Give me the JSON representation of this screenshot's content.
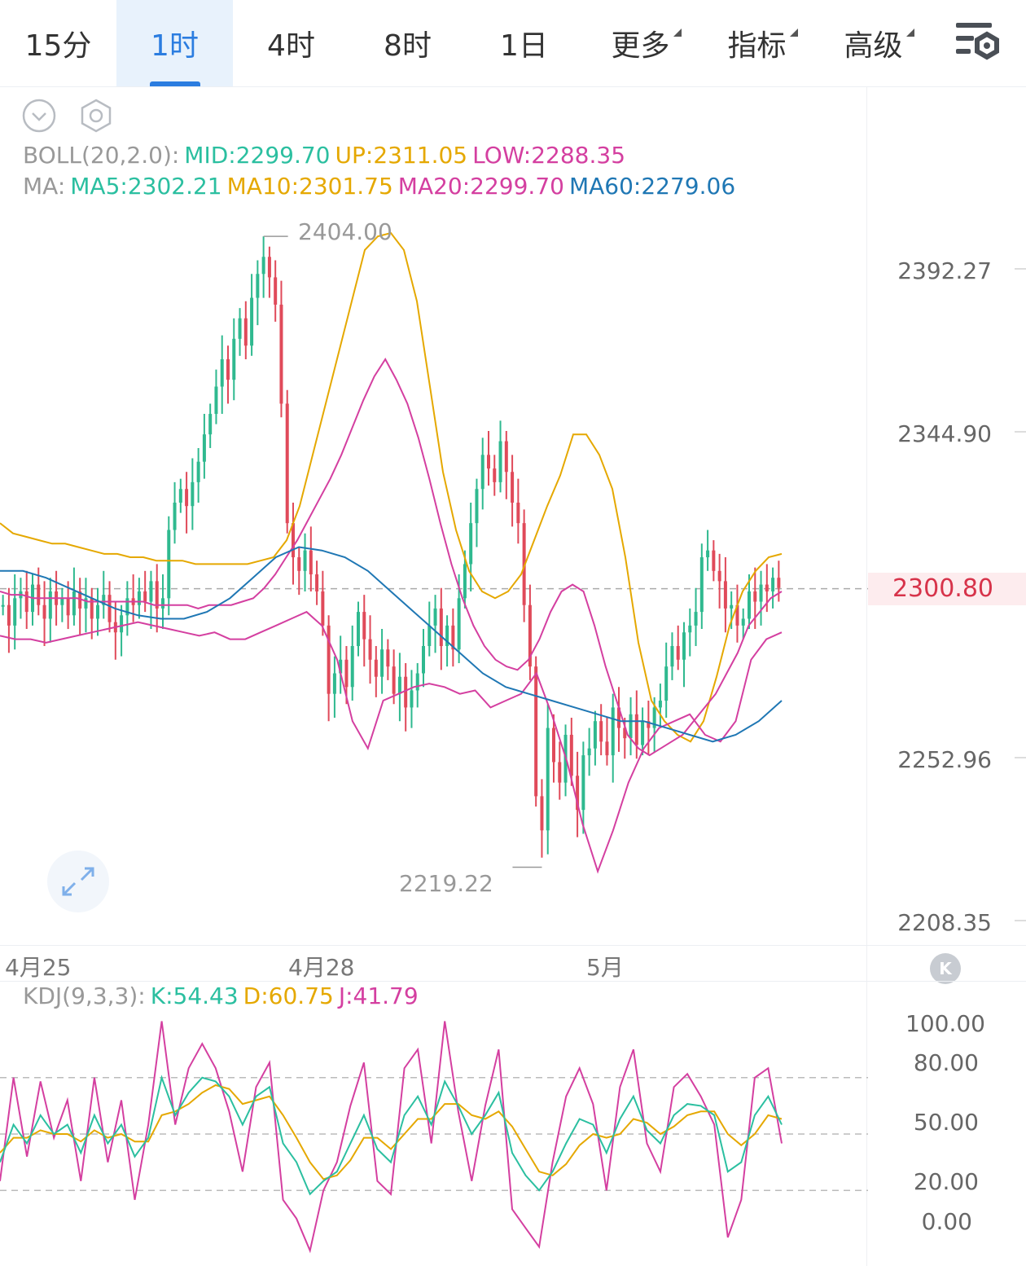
{
  "tabs": [
    {
      "label": "15分",
      "active": false
    },
    {
      "label": "1时",
      "active": true
    },
    {
      "label": "4时",
      "active": false
    },
    {
      "label": "8时",
      "active": false
    },
    {
      "label": "1日",
      "active": false
    },
    {
      "label": "更多",
      "active": false,
      "dropdown": true
    },
    {
      "label": "指标",
      "active": false,
      "dropdown": true
    },
    {
      "label": "高级",
      "active": false,
      "dropdown": true
    }
  ],
  "icons": {
    "settings": "chart-settings-icon",
    "collapse": "chevron-down-circle-icon",
    "gear": "hexagon-gear-icon",
    "expand": "expand-arrows-icon",
    "k": "k-badge-icon"
  },
  "boll": {
    "label": "BOLL(20,2.0):",
    "mid": "MID:2299.70",
    "up": "UP:2311.05",
    "low": "LOW:2288.35"
  },
  "ma": {
    "label": "MA:",
    "ma5": "MA5:2302.21",
    "ma10": "MA10:2301.75",
    "ma20": "MA20:2299.70",
    "ma60": "MA60:2279.06"
  },
  "kdj": {
    "label": "KDJ(9,3,3):",
    "k": "K:54.43",
    "d": "D:60.75",
    "j": "J:41.79"
  },
  "price_axis": [
    "2392.27",
    "2344.90",
    "2252.96",
    "2208.35"
  ],
  "current_price": "2300.80",
  "annotations": {
    "high": "2404.00",
    "low": "2219.22"
  },
  "dates": [
    "4月25",
    "4月28",
    "5月"
  ],
  "kdj_axis": [
    "100.00",
    "80.00",
    "50.00",
    "20.00",
    "0.00"
  ],
  "k_badge": "K",
  "colors": {
    "accent": "#2b7de0",
    "up": "#2fb98f",
    "down": "#e04a5a",
    "mid": "#2bbfa0",
    "upper": "#e5a800",
    "lower": "#d43fa0",
    "ma60": "#1f77b4",
    "label": "#999999"
  },
  "chart_data": {
    "type": "candlestick",
    "ylim": [
      2200,
      2410
    ],
    "kdj_ylim": [
      -15,
      115
    ],
    "ohlc_close": [
      2296,
      2290,
      2298,
      2300,
      2294,
      2302,
      2296,
      2292,
      2300,
      2296,
      2298,
      2293,
      2300,
      2295,
      2298,
      2292,
      2296,
      2299,
      2291,
      2288,
      2293,
      2298,
      2296,
      2300,
      2297,
      2303,
      2295,
      2298,
      2318,
      2326,
      2330,
      2325,
      2332,
      2338,
      2346,
      2352,
      2360,
      2368,
      2362,
      2374,
      2380,
      2372,
      2386,
      2393,
      2398,
      2392,
      2384,
      2355,
      2320,
      2310,
      2306,
      2312,
      2305,
      2300,
      2290,
      2270,
      2276,
      2280,
      2272,
      2284,
      2294,
      2286,
      2280,
      2275,
      2283,
      2278,
      2270,
      2275,
      2266,
      2271,
      2276,
      2284,
      2290,
      2295,
      2284,
      2290,
      2283,
      2298,
      2308,
      2320,
      2330,
      2340,
      2336,
      2332,
      2344,
      2335,
      2326,
      2320,
      2296,
      2278,
      2240,
      2230,
      2260,
      2250,
      2244,
      2258,
      2246,
      2236,
      2252,
      2254,
      2262,
      2256,
      2252,
      2266,
      2260,
      2257,
      2264,
      2255,
      2262,
      2260,
      2266,
      2268,
      2278,
      2284,
      2280,
      2288,
      2290,
      2294,
      2310,
      2312,
      2306,
      2303,
      2295,
      2296,
      2290,
      2292,
      2300,
      2297,
      2302,
      2300,
      2304,
      2301
    ],
    "boll_mid": [
      2300,
      2299,
      2299,
      2298,
      2298,
      2298,
      2298,
      2298,
      2297,
      2297,
      2297,
      2297,
      2297,
      2297,
      2296,
      2296,
      2296,
      2296,
      2295,
      2296,
      2296,
      2296,
      2297,
      2298,
      2301,
      2305,
      2310,
      2315,
      2321,
      2327,
      2333,
      2340,
      2348,
      2356,
      2363,
      2368,
      2362,
      2355,
      2345,
      2333,
      2320,
      2308,
      2298,
      2290,
      2284,
      2280,
      2278,
      2277,
      2280,
      2286,
      2294,
      2300,
      2302,
      2300,
      2290,
      2278,
      2268,
      2258,
      2254,
      2252,
      2254,
      2256,
      2258,
      2262,
      2266,
      2270,
      2276,
      2282,
      2290,
      2294,
      2298,
      2300
    ],
    "boll_up": [
      2320,
      2317,
      2316,
      2315,
      2314,
      2314,
      2313,
      2312,
      2311,
      2311,
      2310,
      2310,
      2309,
      2309,
      2309,
      2308,
      2308,
      2308,
      2308,
      2308,
      2309,
      2310,
      2315,
      2325,
      2340,
      2355,
      2370,
      2385,
      2400,
      2404,
      2405,
      2400,
      2385,
      2360,
      2335,
      2318,
      2306,
      2300,
      2298,
      2300,
      2305,
      2315,
      2325,
      2334,
      2346,
      2346,
      2340,
      2330,
      2310,
      2285,
      2268,
      2262,
      2258,
      2256,
      2262,
      2275,
      2290,
      2300,
      2306,
      2310,
      2311
    ],
    "boll_low": [
      2287,
      2286,
      2286,
      2285,
      2286,
      2287,
      2288,
      2289,
      2290,
      2291,
      2290,
      2289,
      2288,
      2287,
      2288,
      2286,
      2286,
      2288,
      2290,
      2292,
      2294,
      2290,
      2280,
      2262,
      2254,
      2268,
      2270,
      2272,
      2273,
      2272,
      2270,
      2271,
      2266,
      2268,
      2270,
      2276,
      2264,
      2250,
      2232,
      2218,
      2230,
      2244,
      2254,
      2260,
      2262,
      2264,
      2258,
      2256,
      2262,
      2280,
      2286,
      2288
    ],
    "ma60": [
      2306,
      2306,
      2304,
      2301,
      2298,
      2295,
      2293,
      2292,
      2292,
      2294,
      2298,
      2304,
      2310,
      2313,
      2312,
      2310,
      2306,
      2300,
      2294,
      2288,
      2282,
      2276,
      2272,
      2270,
      2268,
      2266,
      2264,
      2262,
      2262,
      2260,
      2258,
      2256,
      2258,
      2262,
      2268
    ],
    "kdj_k": [
      35,
      55,
      45,
      60,
      50,
      55,
      40,
      60,
      45,
      55,
      38,
      48,
      80,
      60,
      72,
      80,
      78,
      70,
      55,
      70,
      75,
      45,
      35,
      18,
      25,
      30,
      45,
      60,
      42,
      35,
      60,
      70,
      55,
      78,
      65,
      50,
      60,
      72,
      40,
      28,
      20,
      30,
      45,
      58,
      55,
      40,
      58,
      70,
      52,
      45,
      60,
      66,
      65,
      60,
      30,
      35,
      60,
      70,
      55
    ],
    "kdj_d": [
      40,
      48,
      48,
      52,
      50,
      50,
      46,
      52,
      48,
      50,
      46,
      46,
      60,
      62,
      66,
      72,
      76,
      74,
      66,
      68,
      70,
      60,
      48,
      35,
      26,
      28,
      36,
      48,
      48,
      42,
      50,
      58,
      58,
      66,
      66,
      60,
      58,
      62,
      54,
      42,
      30,
      28,
      34,
      44,
      50,
      48,
      50,
      58,
      56,
      50,
      54,
      60,
      62,
      62,
      50,
      44,
      50,
      60,
      58
    ],
    "kdj_j": [
      25,
      80,
      38,
      78,
      48,
      68,
      25,
      80,
      35,
      68,
      15,
      55,
      110,
      55,
      85,
      98,
      85,
      62,
      30,
      75,
      88,
      15,
      5,
      -12,
      20,
      35,
      65,
      88,
      25,
      18,
      85,
      95,
      45,
      110,
      62,
      25,
      65,
      95,
      10,
      0,
      -10,
      35,
      70,
      85,
      66,
      20,
      75,
      95,
      45,
      30,
      75,
      82,
      70,
      55,
      -5,
      15,
      80,
      85,
      45
    ]
  }
}
